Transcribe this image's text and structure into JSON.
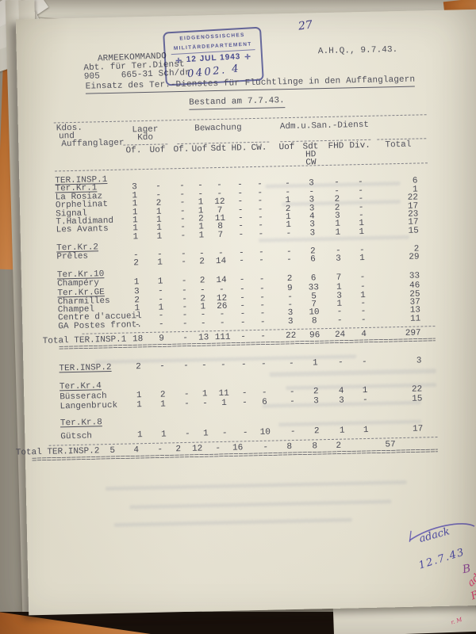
{
  "letterhead": [
    "ARMEEKOMMANDO",
    "Abt. für Ter.Dienst",
    "905    665-31 Sch/dr"
  ],
  "stamp": {
    "line1": "EIDGENÖSSISCHES",
    "line2": "MILITÄRDEPARTEMENT",
    "cross_icon": "✛",
    "date": "12 JUL 1943",
    "handwritten_number": "0402. 4"
  },
  "annotations": {
    "page_number_pencil": "27",
    "hq_date": "A.H.Q., 9.7.43.",
    "bottom_scribble": "adack",
    "bottom_date": "12.7.43",
    "bottom_letter": "B",
    "bottom_red_small": "ad",
    "bottom_red_letter": "R",
    "bottom_red_marks": "r. M"
  },
  "title": "Einsatz des Ter.-Dienstes für Flüchtlinge in den Auffanglagern",
  "subtitle": "Bestand am 7.7.43.",
  "table": {
    "row_header_lines": [
      "Kdos.",
      "und",
      "Auffanglager"
    ],
    "groups": [
      {
        "name": "Lager",
        "name2": "Kdo",
        "cols": [
          "Of.",
          "Uof"
        ]
      },
      {
        "name": "Bewachung",
        "cols": [
          "Of.",
          "Uof",
          "Sdt",
          "HD.",
          "CW."
        ]
      },
      {
        "name": "Adm.u.San.-Dienst",
        "cols": [
          "Uof",
          "Sdt",
          "FHD",
          "Div."
        ],
        "sdt_sub": [
          "HD",
          "CW"
        ]
      }
    ],
    "total_col": "Total",
    "sections": [
      {
        "rows": [
          {
            "type": "header",
            "label": "TER.INSP.1"
          },
          {
            "type": "kr",
            "label": "Ter.Kr.1",
            "values": [
              "3",
              "-",
              "-",
              "-",
              "-",
              "-",
              "-",
              "-",
              "3",
              "-",
              "-"
            ],
            "total": "6"
          },
          {
            "type": "camp",
            "label": "La Rosiaz",
            "values": [
              "1",
              "-",
              "-",
              "-",
              "-",
              "-",
              "-",
              "-",
              "-",
              "-",
              "-"
            ],
            "total": "1"
          },
          {
            "type": "camp",
            "label": "Orphelinat",
            "values": [
              "1",
              "2",
              "-",
              "1",
              "12",
              "-",
              "-",
              "1",
              "3",
              "2",
              "-"
            ],
            "total": "22"
          },
          {
            "type": "camp",
            "label": "Signal",
            "values": [
              "1",
              "1",
              "-",
              "1",
              "7",
              "-",
              "-",
              "2",
              "3",
              "2",
              "-"
            ],
            "total": "17"
          },
          {
            "type": "camp",
            "label": "T.Haldimand",
            "values": [
              "1",
              "1",
              "-",
              "2",
              "11",
              "-",
              "-",
              "1",
              "4",
              "3",
              "-"
            ],
            "total": "23"
          },
          {
            "type": "camp",
            "label": "Les Avants",
            "values": [
              "1",
              "1",
              "-",
              "1",
              "8",
              "-",
              "-",
              "1",
              "3",
              "1",
              "1"
            ],
            "total": "17"
          },
          {
            "type": "camp",
            "label": "",
            "values": [
              "1",
              "1",
              "-",
              "1",
              "7",
              "-",
              "-",
              "-",
              "3",
              "1",
              "1"
            ],
            "total": "15"
          },
          {
            "type": "kr",
            "label": "Ter.Kr.2",
            "values": [],
            "total": ""
          },
          {
            "type": "camp",
            "label": "Prêles",
            "values": [
              "-",
              "-",
              "-",
              "-",
              "-",
              "-",
              "-",
              "-",
              "2",
              "-",
              "-"
            ],
            "total": "2"
          },
          {
            "type": "camp",
            "label": "",
            "values": [
              "2",
              "1",
              "-",
              "2",
              "14",
              "-",
              "-",
              "-",
              "6",
              "3",
              "1"
            ],
            "total": "29"
          },
          {
            "type": "kr",
            "label": "Ter.Kr.10",
            "values": [],
            "total": ""
          },
          {
            "type": "camp",
            "label": "Champéry",
            "values": [
              "1",
              "1",
              "-",
              "2",
              "14",
              "-",
              "-",
              "2",
              "6",
              "7",
              "-"
            ],
            "total": "33"
          },
          {
            "type": "kr",
            "label": "Ter.Kr.GE",
            "values": [
              "3",
              "-",
              "-",
              "-",
              "-",
              "-",
              "-",
              "9",
              "33",
              "1",
              "-"
            ],
            "total": "46"
          },
          {
            "type": "camp",
            "label": "Charmilles",
            "values": [
              "2",
              "-",
              "-",
              "2",
              "12",
              "-",
              "-",
              "-",
              "5",
              "3",
              "1"
            ],
            "total": "25"
          },
          {
            "type": "camp",
            "label": "Champel",
            "values": [
              "1",
              "1",
              "-",
              "1",
              "26",
              "-",
              "-",
              "-",
              "7",
              "1",
              "-"
            ],
            "total": "37"
          },
          {
            "type": "camp",
            "label": "Centre d'accueil",
            "values": [
              "-",
              "-",
              "-",
              "-",
              "-",
              "-",
              "-",
              "3",
              "10",
              "-",
              "-"
            ],
            "total": "13"
          },
          {
            "type": "camp",
            "label": "GA Postes front.",
            "values": [
              "-",
              "-",
              "-",
              "-",
              "-",
              "-",
              "-",
              "3",
              "8",
              "-",
              "-"
            ],
            "total": "11"
          }
        ],
        "total_row": {
          "label": "Total TER.INSP.1",
          "values": [
            "18",
            "9",
            "-",
            "13",
            "111",
            "-",
            "-",
            "22",
            "96",
            "24",
            "4"
          ],
          "total": "297"
        }
      },
      {
        "rows": [
          {
            "type": "header",
            "label": "TER.INSP.2",
            "values": [
              "2",
              "-",
              "-",
              "-",
              "-",
              "-",
              "-",
              "-",
              "1",
              "-",
              "-"
            ],
            "total": "3"
          },
          {
            "type": "kr",
            "label": "Ter.Kr.4",
            "values": [],
            "total": ""
          },
          {
            "type": "camp",
            "label": "Büsserach",
            "values": [
              "1",
              "2",
              "-",
              "1",
              "11",
              "-",
              "-",
              "-",
              "2",
              "4",
              "1"
            ],
            "total": "22"
          },
          {
            "type": "camp",
            "label": "Langenbruck",
            "values": [
              "1",
              "1",
              "-",
              "-",
              "1",
              "-",
              "6",
              "-",
              "3",
              "3",
              "-"
            ],
            "total": "15"
          },
          {
            "type": "kr",
            "label": "Ter.Kr.8",
            "values": [],
            "total": ""
          },
          {
            "type": "camp",
            "label": "Gütsch",
            "values": [
              "1",
              "1",
              "-",
              "1",
              "-",
              "-",
              "10",
              "-",
              "2",
              "1",
              "1"
            ],
            "total": "17"
          }
        ],
        "total_row": {
          "label": "Total TER.INSP.2",
          "values": [
            "5",
            "4",
            "-",
            "2",
            "12",
            "-",
            "16",
            "-",
            "8",
            "8",
            "2"
          ],
          "total": "57"
        }
      }
    ]
  },
  "colors": {
    "paper": "#ece8d8",
    "ink": "#50505b",
    "stamp_blue": "#4e52a8",
    "pen_purple": "#4c49a0",
    "pen_pink": "#de3f72",
    "orange_paper": "#cd7a35"
  }
}
